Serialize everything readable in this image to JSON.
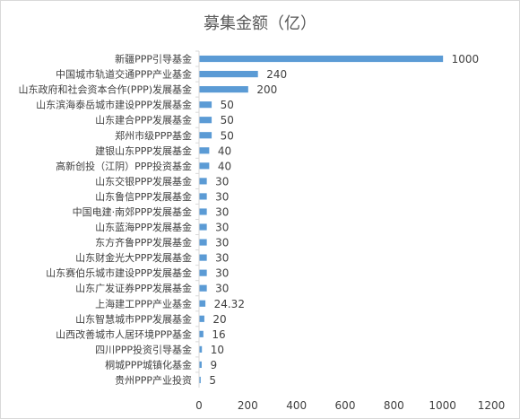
{
  "chart_data": {
    "type": "bar",
    "orientation": "horizontal",
    "title": "募集金额（亿）",
    "categories": [
      "新疆PPP引导基金",
      "中国城市轨道交通PPP产业基金",
      "山东政府和社会资本合作(PPP)发展基金",
      "山东滨海泰岳城市建设PPP发展基金",
      "山东建合PPP发展基金",
      "郑州市级PPP基金",
      "建银山东PPP发展基金",
      "高新创投（江阴）PPP投资基金",
      "山东交银PPP发展基金",
      "山东鲁信PPP发展基金",
      "中国电建·南郊PPP发展基金",
      "山东蓝海PPP发展基金",
      "东方齐鲁PPP发展基金",
      "山东财金光大PPP发展基金",
      "山东赛伯乐城市建设PPP发展基金",
      "山东广发证券PPP发展基金",
      "上海建工PPP产业基金",
      "山东智慧城市PPP发展基金",
      "山西改善城市人居环境PPP基金",
      "四川PPP投资引导基金",
      "桐城PPP城镇化基金",
      "贵州PPP产业投资"
    ],
    "values": [
      1000,
      240,
      200,
      50,
      50,
      50,
      40,
      40,
      30,
      30,
      30,
      30,
      30,
      30,
      30,
      30,
      24.32,
      20,
      16,
      10,
      9,
      5
    ],
    "data_labels": [
      "1000",
      "240",
      "200",
      "50",
      "50",
      "50",
      "40",
      "40",
      "30",
      "30",
      "30",
      "30",
      "30",
      "30",
      "30",
      "30",
      "24.32",
      "20",
      "16",
      "10",
      "9",
      "5"
    ],
    "xlim": [
      0,
      1200
    ],
    "xticks": [
      "0",
      "200",
      "400",
      "600",
      "800",
      "1000",
      "1200"
    ],
    "xlabel": "",
    "ylabel": "",
    "grid": false,
    "legend": "none",
    "colors": {
      "bar": "#5b9bd5",
      "text": "#404040",
      "axis": "#d9d9d9",
      "frame": "#d9d9d9"
    }
  }
}
